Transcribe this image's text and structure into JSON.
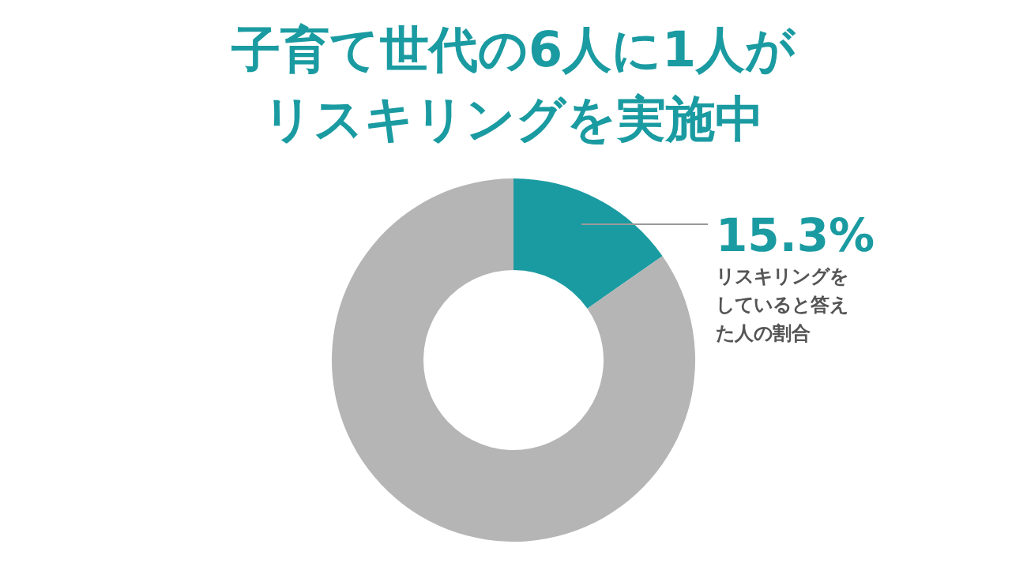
{
  "chart_data": {
    "type": "donut",
    "title": "子育て世代の6人に1人がリスキリングを実施中",
    "categories": [
      "リスキリングをしていると答えた人の割合",
      null
    ],
    "values": [
      15.3,
      84.7
    ],
    "colors": [
      "#1a9ba1",
      "#b5b5b5"
    ],
    "value_labels": [
      "15.3%",
      null
    ]
  }
}
